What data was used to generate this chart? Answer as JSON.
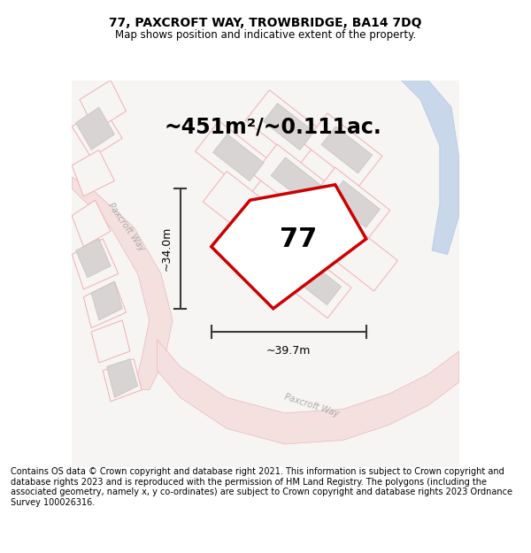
{
  "title_line1": "77, PAXCROFT WAY, TROWBRIDGE, BA14 7DQ",
  "title_line2": "Map shows position and indicative extent of the property.",
  "area_text": "~451m²/~0.111ac.",
  "label_number": "77",
  "dim_width": "~39.7m",
  "dim_height": "~34.0m",
  "footer_text": "Contains OS data © Crown copyright and database right 2021. This information is subject to Crown copyright and database rights 2023 and is reproduced with the permission of HM Land Registry. The polygons (including the associated geometry, namely x, y co-ordinates) are subject to Crown copyright and database rights 2023 Ordnance Survey 100026316.",
  "bg_color": "#ffffff",
  "map_bg": "#f7f4f4",
  "road_fill": "#f5e0e0",
  "road_edge": "#e8b8b8",
  "plot_outline_color": "#cc0000",
  "building_fill": "#d8d4d4",
  "building_edge": "#c8c0c0",
  "lot_fill": "#f7f4f4",
  "lot_edge": "#f0b0b0",
  "water_fill": "#c8d8ea",
  "water_edge": "#b0c5dc",
  "dim_line_color": "#3a3a3a",
  "text_color": "#000000",
  "road_label_color": "#aaaaaa",
  "title_fontsize": 10,
  "subtitle_fontsize": 8.5,
  "area_fontsize": 17,
  "label_fontsize": 22,
  "dim_fontsize": 9,
  "footer_fontsize": 7
}
